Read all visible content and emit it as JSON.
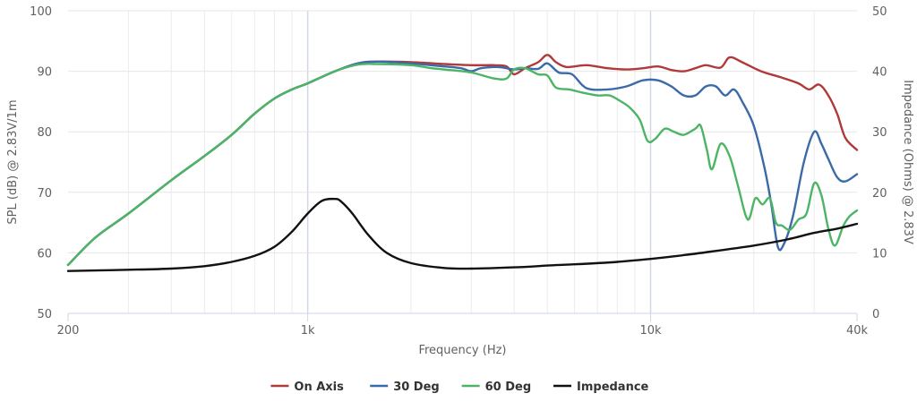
{
  "chart_data": {
    "type": "line",
    "xlabel": "Frequency (Hz)",
    "ylabel_left": "SPL (dB) @ 2.83V/1m",
    "ylabel_right": "Impedance (Ohms) @ 2.83V",
    "x_scale": "log",
    "xlim": [
      200,
      40000
    ],
    "ylim_left": [
      50,
      100
    ],
    "ylim_right": [
      0,
      50
    ],
    "x_ticks": [
      {
        "value": 200,
        "label": "200"
      },
      {
        "value": 1000,
        "label": "1k"
      },
      {
        "value": 10000,
        "label": "10k"
      },
      {
        "value": 40000,
        "label": "40k"
      }
    ],
    "y_ticks_left": [
      50,
      60,
      70,
      80,
      90,
      100
    ],
    "y_ticks_right": [
      0,
      10,
      20,
      30,
      40,
      50
    ],
    "grid": true,
    "legend_position": "bottom-center",
    "series": [
      {
        "name": "On Axis",
        "color": "#b03a3a",
        "axis": "left",
        "points": [
          [
            200,
            58
          ],
          [
            240,
            62.5
          ],
          [
            300,
            66.5
          ],
          [
            400,
            72
          ],
          [
            500,
            76
          ],
          [
            600,
            79.5
          ],
          [
            700,
            83
          ],
          [
            800,
            85.5
          ],
          [
            900,
            87
          ],
          [
            1000,
            88
          ],
          [
            1200,
            90
          ],
          [
            1400,
            91.3
          ],
          [
            1600,
            91.6
          ],
          [
            2000,
            91.5
          ],
          [
            2500,
            91.2
          ],
          [
            3000,
            91
          ],
          [
            3500,
            91
          ],
          [
            3800,
            90.8
          ],
          [
            4000,
            89.5
          ],
          [
            4300,
            90.5
          ],
          [
            4700,
            91.5
          ],
          [
            5000,
            92.7
          ],
          [
            5300,
            91.5
          ],
          [
            5700,
            90.7
          ],
          [
            6500,
            91
          ],
          [
            7500,
            90.5
          ],
          [
            8500,
            90.3
          ],
          [
            9500,
            90.5
          ],
          [
            10500,
            90.8
          ],
          [
            11500,
            90.2
          ],
          [
            12500,
            90
          ],
          [
            13500,
            90.5
          ],
          [
            14500,
            91
          ],
          [
            16000,
            90.6
          ],
          [
            17000,
            92.3
          ],
          [
            18500,
            91.5
          ],
          [
            21000,
            90
          ],
          [
            24000,
            89
          ],
          [
            27000,
            88
          ],
          [
            29000,
            87
          ],
          [
            31000,
            87.8
          ],
          [
            33000,
            86
          ],
          [
            35000,
            83
          ],
          [
            37000,
            79
          ],
          [
            40000,
            77
          ]
        ]
      },
      {
        "name": "30 Deg",
        "color": "#3a6aa8",
        "axis": "left",
        "points": [
          [
            200,
            58
          ],
          [
            240,
            62.5
          ],
          [
            300,
            66.5
          ],
          [
            400,
            72
          ],
          [
            500,
            76
          ],
          [
            600,
            79.5
          ],
          [
            700,
            83
          ],
          [
            800,
            85.5
          ],
          [
            900,
            87
          ],
          [
            1000,
            88
          ],
          [
            1200,
            90
          ],
          [
            1400,
            91.3
          ],
          [
            1600,
            91.6
          ],
          [
            2000,
            91.3
          ],
          [
            2500,
            90.8
          ],
          [
            2800,
            90.5
          ],
          [
            3000,
            90
          ],
          [
            3200,
            90.5
          ],
          [
            3600,
            90.7
          ],
          [
            4000,
            90.3
          ],
          [
            4300,
            90.5
          ],
          [
            4700,
            90.4
          ],
          [
            5000,
            91.3
          ],
          [
            5400,
            89.8
          ],
          [
            5900,
            89.5
          ],
          [
            6500,
            87.2
          ],
          [
            7500,
            87
          ],
          [
            8500,
            87.5
          ],
          [
            9500,
            88.5
          ],
          [
            10500,
            88.5
          ],
          [
            11500,
            87.5
          ],
          [
            12500,
            86
          ],
          [
            13500,
            86
          ],
          [
            14500,
            87.5
          ],
          [
            15500,
            87.5
          ],
          [
            16500,
            86
          ],
          [
            17500,
            87
          ],
          [
            18500,
            85
          ],
          [
            20000,
            81
          ],
          [
            21500,
            74
          ],
          [
            22500,
            68
          ],
          [
            23500,
            61
          ],
          [
            24500,
            61.5
          ],
          [
            26000,
            66
          ],
          [
            28000,
            75
          ],
          [
            30000,
            80
          ],
          [
            31500,
            78
          ],
          [
            33000,
            75.5
          ],
          [
            35000,
            72.5
          ],
          [
            37000,
            71.8
          ],
          [
            40000,
            73
          ]
        ]
      },
      {
        "name": "60 Deg",
        "color": "#4cb565",
        "axis": "left",
        "points": [
          [
            200,
            58
          ],
          [
            240,
            62.5
          ],
          [
            300,
            66.5
          ],
          [
            400,
            72
          ],
          [
            500,
            76
          ],
          [
            600,
            79.5
          ],
          [
            700,
            83
          ],
          [
            800,
            85.5
          ],
          [
            900,
            87
          ],
          [
            1000,
            88
          ],
          [
            1200,
            90
          ],
          [
            1400,
            91.1
          ],
          [
            1600,
            91.2
          ],
          [
            2000,
            91
          ],
          [
            2300,
            90.5
          ],
          [
            2600,
            90.2
          ],
          [
            3000,
            89.8
          ],
          [
            3500,
            88.8
          ],
          [
            3800,
            88.8
          ],
          [
            4000,
            90.3
          ],
          [
            4300,
            90.5
          ],
          [
            4700,
            89.5
          ],
          [
            5000,
            89.3
          ],
          [
            5300,
            87.3
          ],
          [
            5800,
            87
          ],
          [
            6300,
            86.5
          ],
          [
            7000,
            86
          ],
          [
            7600,
            86
          ],
          [
            8200,
            85
          ],
          [
            8700,
            84
          ],
          [
            9300,
            82
          ],
          [
            9800,
            78.5
          ],
          [
            10300,
            78.8
          ],
          [
            11000,
            80.5
          ],
          [
            11700,
            80
          ],
          [
            12500,
            79.5
          ],
          [
            13500,
            80.5
          ],
          [
            14000,
            81
          ],
          [
            14600,
            77
          ],
          [
            15100,
            73.8
          ],
          [
            16000,
            78
          ],
          [
            17000,
            76
          ],
          [
            18000,
            71
          ],
          [
            19200,
            65.5
          ],
          [
            20200,
            69
          ],
          [
            21200,
            68
          ],
          [
            22300,
            69
          ],
          [
            23200,
            65
          ],
          [
            24200,
            64.5
          ],
          [
            25500,
            63.8
          ],
          [
            27000,
            65.5
          ],
          [
            28500,
            66.5
          ],
          [
            30000,
            71.5
          ],
          [
            31500,
            69.5
          ],
          [
            33000,
            64
          ],
          [
            34500,
            61.2
          ],
          [
            36500,
            64.5
          ],
          [
            38000,
            66
          ],
          [
            40000,
            67
          ]
        ]
      },
      {
        "name": "Impedance",
        "color": "#111111",
        "axis": "right",
        "points": [
          [
            200,
            7
          ],
          [
            300,
            7.2
          ],
          [
            400,
            7.4
          ],
          [
            500,
            7.8
          ],
          [
            600,
            8.5
          ],
          [
            700,
            9.5
          ],
          [
            800,
            11
          ],
          [
            900,
            13.5
          ],
          [
            1000,
            16.5
          ],
          [
            1100,
            18.6
          ],
          [
            1200,
            18.9
          ],
          [
            1250,
            18.5
          ],
          [
            1350,
            16.5
          ],
          [
            1500,
            13
          ],
          [
            1700,
            10
          ],
          [
            2000,
            8.3
          ],
          [
            2500,
            7.5
          ],
          [
            3000,
            7.4
          ],
          [
            4000,
            7.6
          ],
          [
            5000,
            7.9
          ],
          [
            6000,
            8.1
          ],
          [
            8000,
            8.5
          ],
          [
            10000,
            9
          ],
          [
            12000,
            9.5
          ],
          [
            15000,
            10.2
          ],
          [
            20000,
            11.2
          ],
          [
            25000,
            12.2
          ],
          [
            30000,
            13.3
          ],
          [
            35000,
            14
          ],
          [
            40000,
            14.8
          ]
        ]
      }
    ]
  }
}
